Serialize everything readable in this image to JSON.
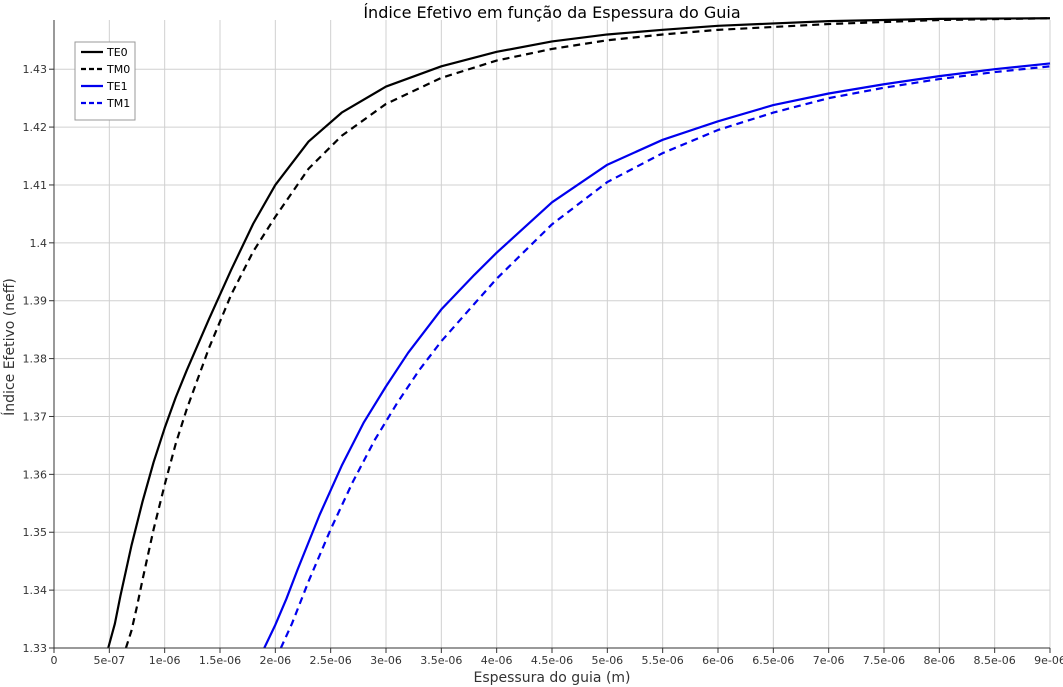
{
  "chart_data": {
    "type": "line",
    "title": "Índice Efetivo em função da Espessura do Guia",
    "xlabel": "Espessura do guia (m)",
    "ylabel": "Índice Efetivo (neff)",
    "xlim": [
      0,
      9e-06
    ],
    "ylim": [
      1.33,
      1.4385
    ],
    "x_ticks": [
      0,
      5e-07,
      1e-06,
      1.5e-06,
      2e-06,
      2.5e-06,
      3e-06,
      3.5e-06,
      4e-06,
      4.5e-06,
      5e-06,
      5.5e-06,
      6e-06,
      6.5e-06,
      7e-06,
      7.5e-06,
      8e-06,
      8.5e-06,
      9e-06
    ],
    "x_tick_labels": [
      "0",
      "5e-07",
      "1e-06",
      "1.5e-06",
      "2e-06",
      "2.5e-06",
      "3e-06",
      "3.5e-06",
      "4e-06",
      "4.5e-06",
      "5e-06",
      "5.5e-06",
      "6e-06",
      "6.5e-06",
      "7e-06",
      "7.5e-06",
      "8e-06",
      "8.5e-06",
      "9e-06"
    ],
    "y_ticks": [
      1.33,
      1.34,
      1.35,
      1.36,
      1.37,
      1.38,
      1.39,
      1.4,
      1.41,
      1.42,
      1.43
    ],
    "y_tick_labels": [
      "1.33",
      "1.34",
      "1.35",
      "1.36",
      "1.37",
      "1.38",
      "1.39",
      "1.4",
      "1.41",
      "1.42",
      "1.43"
    ],
    "grid": true,
    "legend_position": "top-left",
    "series": [
      {
        "name": "TE0",
        "color": "#000000",
        "dash": "solid",
        "x": [
          4.9e-07,
          5.5e-07,
          6e-07,
          7e-07,
          8e-07,
          9e-07,
          1e-06,
          1.1e-06,
          1.2e-06,
          1.4e-06,
          1.6e-06,
          1.8e-06,
          2e-06,
          2.3e-06,
          2.6e-06,
          3e-06,
          3.5e-06,
          4e-06,
          4.5e-06,
          5e-06,
          5.5e-06,
          6e-06,
          7e-06,
          8e-06,
          9e-06
        ],
        "y": [
          1.33,
          1.3342,
          1.339,
          1.3477,
          1.3553,
          1.3621,
          1.368,
          1.3733,
          1.378,
          1.3868,
          1.3953,
          1.4033,
          1.41,
          1.4175,
          1.4225,
          1.427,
          1.4305,
          1.433,
          1.4348,
          1.436,
          1.4368,
          1.4375,
          1.4383,
          1.4387,
          1.4388
        ]
      },
      {
        "name": "TM0",
        "color": "#000000",
        "dash": "dashed",
        "x": [
          6.5e-07,
          7e-07,
          7.5e-07,
          8e-07,
          9e-07,
          1e-06,
          1.1e-06,
          1.2e-06,
          1.4e-06,
          1.6e-06,
          1.8e-06,
          2e-06,
          2.3e-06,
          2.6e-06,
          3e-06,
          3.5e-06,
          4e-06,
          4.5e-06,
          5e-06,
          5.5e-06,
          6e-06,
          7e-06,
          8e-06,
          9e-06
        ],
        "y": [
          1.33,
          1.333,
          1.3372,
          1.3418,
          1.3505,
          1.3582,
          1.3653,
          1.3713,
          1.3818,
          1.391,
          1.3985,
          1.4045,
          1.4128,
          1.4185,
          1.424,
          1.4285,
          1.4315,
          1.4335,
          1.435,
          1.436,
          1.4368,
          1.4378,
          1.4385,
          1.4388
        ]
      },
      {
        "name": "TE1",
        "color": "#0000ee",
        "dash": "solid",
        "x": [
          1.9e-06,
          2e-06,
          2.1e-06,
          2.2e-06,
          2.4e-06,
          2.6e-06,
          2.8e-06,
          3e-06,
          3.2e-06,
          3.5e-06,
          3.8e-06,
          4e-06,
          4.5e-06,
          5e-06,
          5.5e-06,
          6e-06,
          6.5e-06,
          7e-06,
          7.5e-06,
          8e-06,
          8.5e-06,
          9e-06
        ],
        "y": [
          1.33,
          1.334,
          1.3385,
          1.3435,
          1.353,
          1.3615,
          1.369,
          1.3752,
          1.381,
          1.3885,
          1.3945,
          1.3983,
          1.407,
          1.4135,
          1.4178,
          1.421,
          1.4238,
          1.4258,
          1.4274,
          1.4288,
          1.43,
          1.431
        ]
      },
      {
        "name": "TM1",
        "color": "#0000ee",
        "dash": "dashed",
        "x": [
          2.05e-06,
          2.15e-06,
          2.3e-06,
          2.5e-06,
          2.7e-06,
          2.9e-06,
          3.1e-06,
          3.3e-06,
          3.5e-06,
          3.8e-06,
          4e-06,
          4.5e-06,
          5e-06,
          5.5e-06,
          6e-06,
          6.5e-06,
          7e-06,
          7.5e-06,
          8e-06,
          8.5e-06,
          9e-06
        ],
        "y": [
          1.33,
          1.3342,
          1.3415,
          1.3505,
          1.3587,
          1.366,
          1.3723,
          1.378,
          1.383,
          1.3895,
          1.3938,
          1.4032,
          1.4105,
          1.4155,
          1.4195,
          1.4225,
          1.425,
          1.4268,
          1.4283,
          1.4295,
          1.4305
        ]
      }
    ]
  }
}
